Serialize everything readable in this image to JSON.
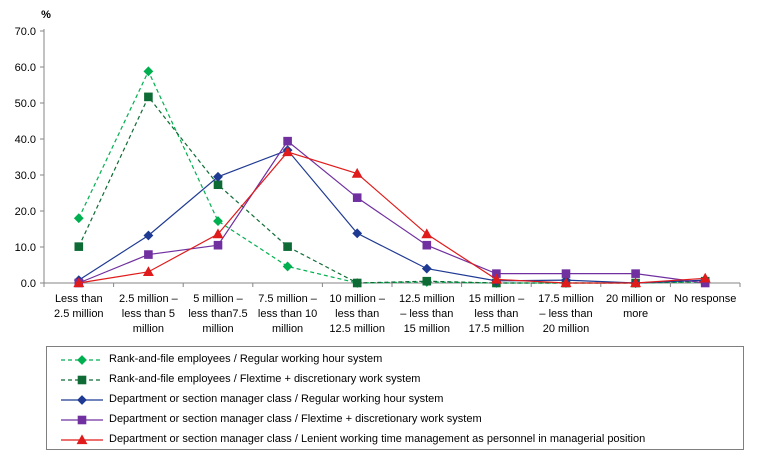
{
  "chart_data": {
    "type": "line",
    "title": "",
    "ylabel": "%",
    "xlabel": "",
    "ylim": [
      0,
      70
    ],
    "yticks": [
      "0.0",
      "10.0",
      "20.0",
      "30.0",
      "40.0",
      "50.0",
      "60.0",
      "70.0"
    ],
    "grid": false,
    "legend_position": "bottom",
    "categories": [
      [
        "Less than",
        "2.5 million"
      ],
      [
        "2.5 million –",
        "less than 5",
        "million"
      ],
      [
        "5 million –",
        "less than7.5",
        "million"
      ],
      [
        "7.5 million –",
        "less than 10",
        "million"
      ],
      [
        "10 million –",
        "less than",
        "12.5 million"
      ],
      [
        "12.5 million",
        "– less than",
        "15 million"
      ],
      [
        "15 million –",
        "less than",
        "17.5 million"
      ],
      [
        "17.5 million",
        "– less than",
        "20 million"
      ],
      [
        "20 million or",
        "more"
      ],
      [
        "No response"
      ]
    ],
    "series": [
      {
        "name": "Rank-and-file employees  / Regular working hour system",
        "color": "#00b050",
        "dash": "dashed",
        "marker": "diamond",
        "values": [
          18.0,
          58.8,
          17.2,
          4.6,
          0.0,
          0.3,
          0.0,
          0.0,
          0.0,
          0.3
        ]
      },
      {
        "name": "Rank-and-file employees / Flextime + discretionary work system",
        "color": "#0e6b35",
        "dash": "dashed",
        "marker": "square",
        "values": [
          10.1,
          51.7,
          27.3,
          10.1,
          0.0,
          0.5,
          0.0,
          0.0,
          0.0,
          0.5
        ]
      },
      {
        "name": "Department or section manager class / Regular working hour system",
        "color": "#1f3a93",
        "dash": "solid",
        "marker": "diamond",
        "values": [
          0.8,
          13.2,
          29.5,
          36.9,
          13.8,
          4.0,
          0.6,
          0.8,
          0.0,
          0.8
        ]
      },
      {
        "name": "Department or section manager class / Flextime + discretionary work system",
        "color": "#7030a0",
        "dash": "solid",
        "marker": "square",
        "values": [
          0.0,
          7.9,
          10.5,
          39.4,
          23.7,
          10.5,
          2.6,
          2.6,
          2.6,
          0.0
        ]
      },
      {
        "name": "Department or section manager class / Lenient working time management as personnel in managerial position",
        "color": "#e01b1b",
        "dash": "solid",
        "marker": "triangle",
        "values": [
          0.0,
          3.1,
          13.6,
          36.4,
          30.4,
          13.6,
          1.0,
          0.0,
          0.0,
          1.3
        ]
      }
    ]
  }
}
